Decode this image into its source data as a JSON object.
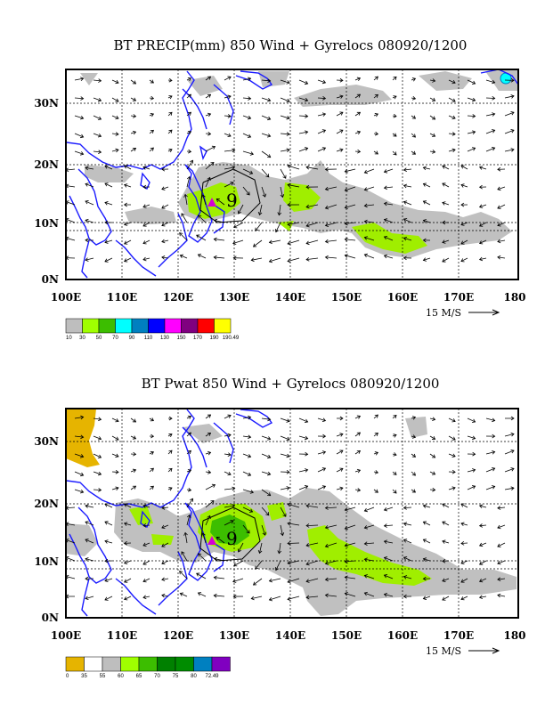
{
  "colors": {
    "coast": "#1a1aff",
    "grid": "#000000",
    "arrow": "#000000",
    "storm_marker": "#d400d4",
    "storm_ring": "#000000"
  },
  "panels": [
    {
      "id": "precip",
      "title": "BT PRECIP(mm) 850 Wind + Gyrelocs 080920/1200",
      "x_ticks": [
        "100E",
        "110E",
        "120E",
        "130E",
        "140E",
        "150E",
        "160E",
        "170E",
        "180"
      ],
      "y_ticks": [
        "0N",
        "10N",
        "20N",
        "30N"
      ],
      "reference_label": "15 M/S",
      "storm_label": "9",
      "legend": {
        "colors": [
          "#bebebe",
          "#a0ff00",
          "#3cbe00",
          "#00ffff",
          "#0080c0",
          "#0000ff",
          "#ff00ff",
          "#800080",
          "#ff0000",
          "#ffff00"
        ],
        "labels": [
          "10",
          "30",
          "50",
          "70",
          "90",
          "110",
          "130",
          "150",
          "170",
          "190",
          "190.49"
        ]
      },
      "shading_colors": [
        "#c0c0c0",
        "#a0ee00"
      ]
    },
    {
      "id": "pwat",
      "title": "BT Pwat 850 Wind + Gyrelocs 080920/1200",
      "x_ticks": [
        "100E",
        "110E",
        "120E",
        "130E",
        "140E",
        "150E",
        "160E",
        "170E",
        "180"
      ],
      "y_ticks": [
        "0N",
        "10N",
        "20N",
        "30N"
      ],
      "reference_label": "15 M/S",
      "storm_label": "9",
      "legend": {
        "colors": [
          "#e6b400",
          "#ffffff",
          "#bebebe",
          "#a0ff00",
          "#3cbe00",
          "#008000",
          "#008c00",
          "#0080c0",
          "#8000c0"
        ],
        "labels": [
          "0",
          "35",
          "55",
          "60",
          "65",
          "70",
          "75",
          "80",
          "72.49"
        ]
      },
      "shading_colors": [
        "#c0c0c0",
        "#a0ee00",
        "#3cbe00",
        "#e6b400"
      ]
    }
  ]
}
